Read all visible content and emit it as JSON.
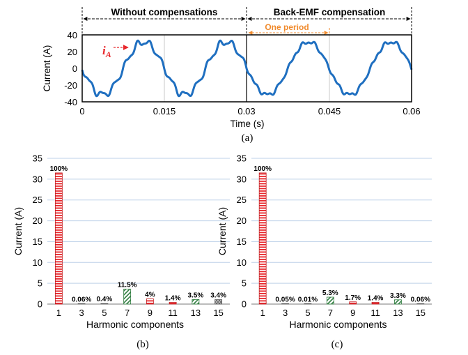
{
  "figure": {
    "waveform": {
      "caption": "(a)",
      "x_label": "Time (s)",
      "y_label": "Current (A)",
      "x_ticks": [
        "0",
        "0.015",
        "0.03",
        "0.045",
        "0.06"
      ],
      "y_ticks": [
        "40",
        "20",
        "0",
        "-20",
        "-40"
      ],
      "segment_left_label": "Without compensations",
      "segment_right_label": "Back-EMF compensation",
      "period_label": "One period",
      "trace_label_main": "i",
      "trace_label_sub": "A",
      "trace_color": "#1f6fc0",
      "accent_red": "#e8262b",
      "accent_orange": "#f08a2c"
    },
    "panel_b": {
      "caption": "(b)"
    },
    "panel_c": {
      "caption": "(c)"
    }
  },
  "chart_data": [
    {
      "type": "line",
      "title": "",
      "xlabel": "Time (s)",
      "ylabel": "Current (A)",
      "xlim": [
        0,
        0.06
      ],
      "ylim": [
        -40,
        40
      ],
      "fundamental_hz": 66.67,
      "series": [
        {
          "amplitude_a": 31.5,
          "components": [
            {
              "harmonic": 1,
              "amplitude": 31.5
            },
            {
              "harmonic": 5,
              "amplitude": 0.13
            },
            {
              "harmonic": 7,
              "amplitude": 3.6
            },
            {
              "harmonic": 11,
              "amplitude": 0.44
            },
            {
              "harmonic": 13,
              "amplitude": 1.1
            }
          ],
          "x_range": [
            0,
            0.03
          ]
        },
        {
          "amplitude_a": 31.5,
          "components": [
            {
              "harmonic": 1,
              "amplitude": 31.5
            },
            {
              "harmonic": 7,
              "amplitude": 1.67
            },
            {
              "harmonic": 9,
              "amplitude": 0.54
            },
            {
              "harmonic": 11,
              "amplitude": 0.44
            },
            {
              "harmonic": 13,
              "amplitude": 1.04
            }
          ],
          "x_range": [
            0.03,
            0.06
          ]
        }
      ],
      "annotations": [
        "Without compensations",
        "Back-EMF compensation",
        "One period"
      ],
      "grid": "vertical at 0.015 intervals"
    },
    {
      "type": "bar",
      "xlabel": "Harmonic components",
      "ylabel": "Current (A)",
      "ylim": [
        0,
        35
      ],
      "yticks": [
        "0",
        "5",
        "10",
        "15",
        "20",
        "25",
        "30",
        "35"
      ],
      "categories": [
        "1",
        "3",
        "5",
        "7",
        "9",
        "11",
        "13",
        "15"
      ],
      "values": [
        31.5,
        0.02,
        0.13,
        3.6,
        1.26,
        0.44,
        1.1,
        1.07
      ],
      "labels": [
        "100%",
        "0.06%",
        "0.4%",
        "11.5%",
        "4%",
        "1.4%",
        "3.5%",
        "3.4%"
      ],
      "grid": true
    },
    {
      "type": "bar",
      "xlabel": "Harmonic components",
      "ylabel": "Current (A)",
      "ylim": [
        0,
        35
      ],
      "yticks": [
        "0",
        "5",
        "10",
        "15",
        "20",
        "25",
        "30",
        "35"
      ],
      "categories": [
        "1",
        "3",
        "5",
        "7",
        "9",
        "11",
        "13",
        "15"
      ],
      "values": [
        31.5,
        0.016,
        0.003,
        1.67,
        0.54,
        0.44,
        1.04,
        0.02
      ],
      "labels": [
        "100%",
        "0.05%",
        "0.01%",
        "5.3%",
        "1.7%",
        "1.4%",
        "3.3%",
        "0.06%"
      ],
      "grid": true
    }
  ]
}
